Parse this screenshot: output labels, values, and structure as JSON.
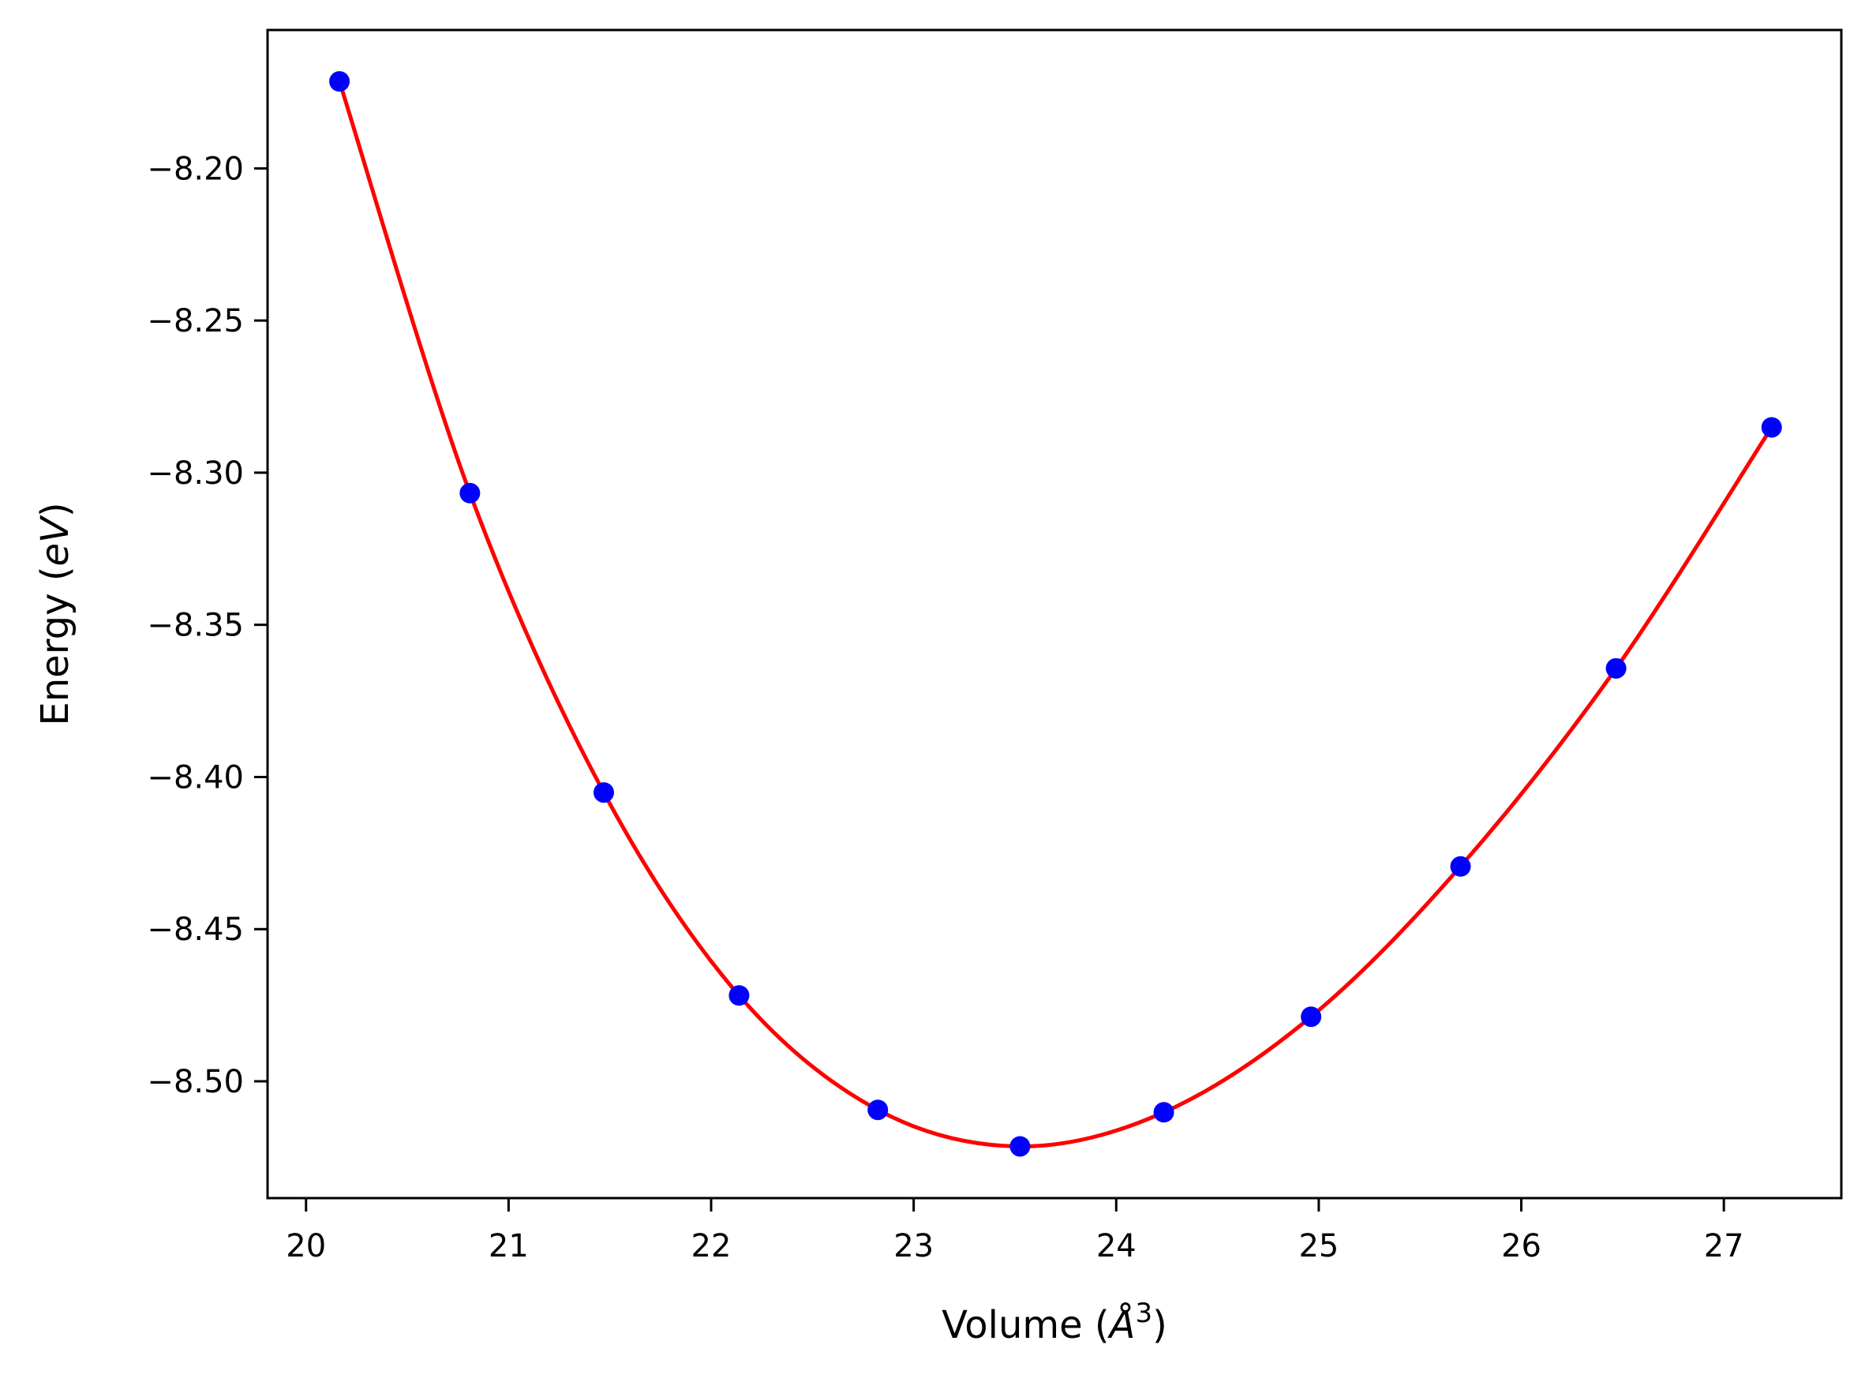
{
  "chart_data": {
    "type": "line",
    "xlabel": "Volume (Å³)",
    "xlabel_parts": {
      "prefix": "Volume (",
      "italic": "Å",
      "sup": "3",
      "suffix": ")"
    },
    "ylabel": "Energy (eV)",
    "ylabel_parts": {
      "prefix": "Energy (",
      "italic": "eV",
      "suffix": ")"
    },
    "xlim": [
      19.81,
      27.58
    ],
    "ylim": [
      -8.5384,
      -8.1545
    ],
    "xticks": [
      20,
      21,
      22,
      23,
      24,
      25,
      26,
      27
    ],
    "xtick_labels": [
      "20",
      "21",
      "22",
      "23",
      "24",
      "25",
      "26",
      "27"
    ],
    "yticks": [
      -8.2,
      -8.25,
      -8.3,
      -8.35,
      -8.4,
      -8.45,
      -8.5
    ],
    "ytick_labels": [
      "−8.20",
      "−8.25",
      "−8.30",
      "−8.35",
      "−8.40",
      "−8.45",
      "−8.50"
    ],
    "grid": false,
    "series": [
      {
        "kind": "scatter",
        "color": "#0000ff",
        "x": [
          20.165,
          20.809,
          21.47,
          22.138,
          22.823,
          23.525,
          24.235,
          24.962,
          25.7,
          26.468,
          27.236
        ],
        "y": [
          -8.1714,
          -8.3067,
          -8.4051,
          -8.4718,
          -8.5094,
          -8.5214,
          -8.5102,
          -8.4788,
          -8.4294,
          -8.3643,
          -8.2851
        ]
      },
      {
        "kind": "fit-line",
        "color": "#ff0000"
      }
    ]
  }
}
